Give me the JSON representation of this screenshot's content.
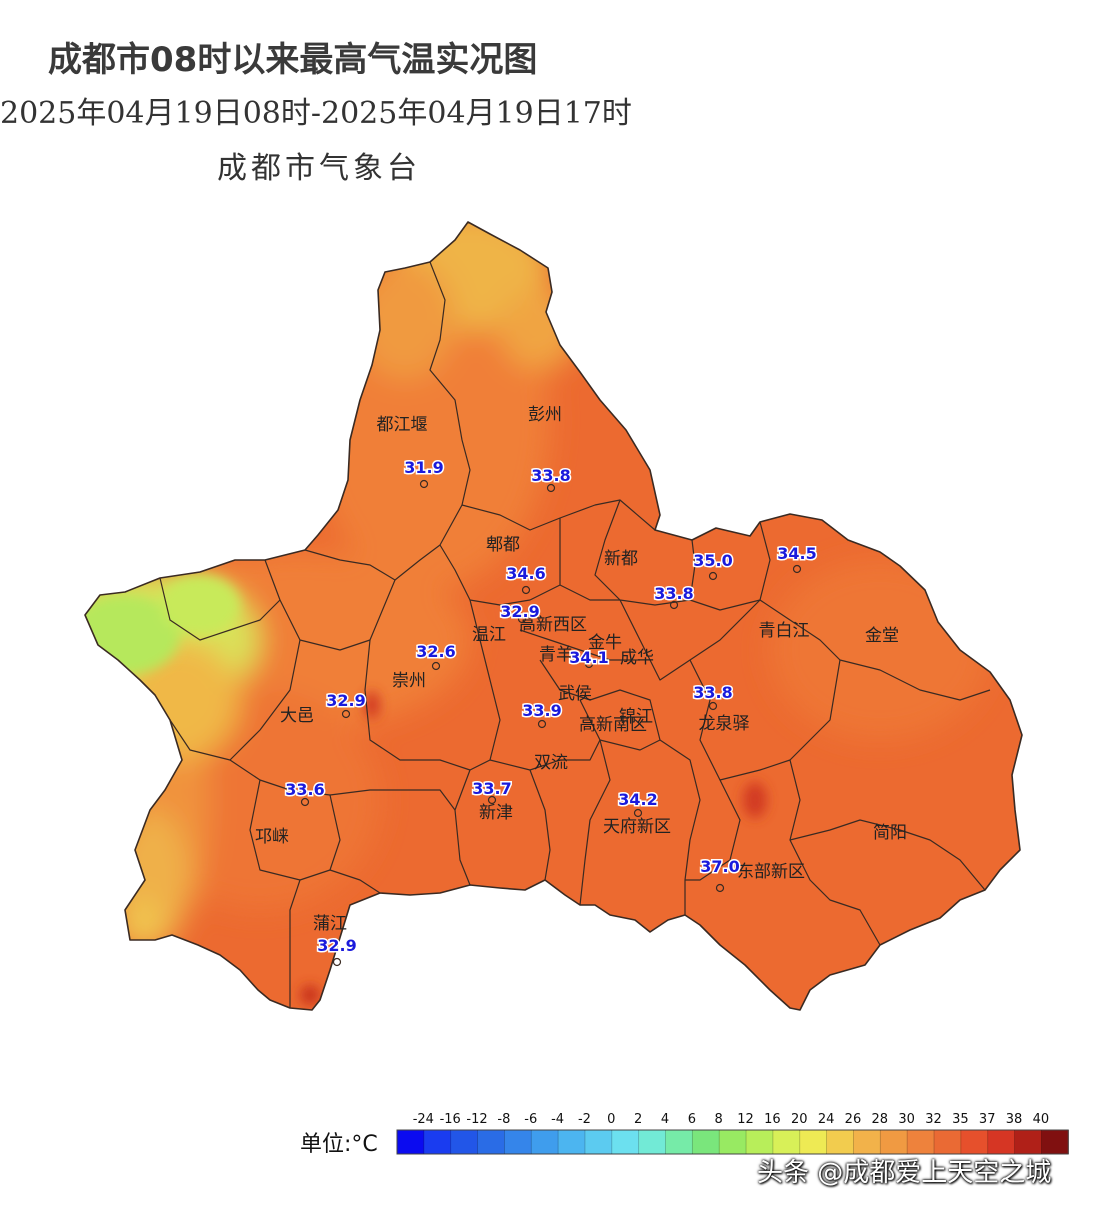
{
  "header": {
    "title": "成都市08时以来最高气温实况图",
    "subtitle": "2025年04月19日08时-2025年04月19日17时",
    "org": "成都市气象台"
  },
  "districts": [
    {
      "name": "都江堰"
    },
    {
      "name": "彭州"
    },
    {
      "name": "郫都"
    },
    {
      "name": "新都"
    },
    {
      "name": "温江"
    },
    {
      "name": "高新西区"
    },
    {
      "name": "青羊"
    },
    {
      "name": "金牛"
    },
    {
      "name": "成华"
    },
    {
      "name": "青白江"
    },
    {
      "name": "金堂"
    },
    {
      "name": "崇州"
    },
    {
      "name": "大邑"
    },
    {
      "name": "武侯"
    },
    {
      "name": "高新南区"
    },
    {
      "name": "锦江"
    },
    {
      "name": "龙泉驿"
    },
    {
      "name": "双流"
    },
    {
      "name": "新津"
    },
    {
      "name": "邛崃"
    },
    {
      "name": "天府新区"
    },
    {
      "name": "东部新区"
    },
    {
      "name": "简阳"
    },
    {
      "name": "蒲江"
    }
  ],
  "stations": [
    {
      "value": "31.9"
    },
    {
      "value": "33.8"
    },
    {
      "value": "34.6"
    },
    {
      "value": "35.0"
    },
    {
      "value": "34.5"
    },
    {
      "value": "33.8"
    },
    {
      "value": "32.9"
    },
    {
      "value": "32.6"
    },
    {
      "value": "34.1"
    },
    {
      "value": "32.9"
    },
    {
      "value": "33.9"
    },
    {
      "value": "33.8"
    },
    {
      "value": "33.6"
    },
    {
      "value": "33.7"
    },
    {
      "value": "34.2"
    },
    {
      "value": "37.0"
    },
    {
      "value": "32.9"
    }
  ],
  "legend": {
    "unit": "单位:°C",
    "ticks": [
      "-24",
      "-16",
      "-12",
      "-8",
      "-6",
      "-4",
      "-2",
      "0",
      "2",
      "4",
      "6",
      "8",
      "12",
      "16",
      "20",
      "24",
      "26",
      "28",
      "30",
      "32",
      "35",
      "37",
      "38",
      "40"
    ],
    "colors": [
      "#0b0bf0",
      "#1a3cf0",
      "#2256e8",
      "#2a6ce6",
      "#3585ea",
      "#3f9ded",
      "#4cb5f0",
      "#5ccbf0",
      "#6ce0ef",
      "#72ead6",
      "#76eba8",
      "#7ae67c",
      "#98ea62",
      "#b8ee5a",
      "#d8f058",
      "#eeea54",
      "#f2cc4e",
      "#f2b24a",
      "#f09a42",
      "#ee823c",
      "#ea6a34",
      "#e6502c",
      "#d63624",
      "#b02018",
      "#801010"
    ]
  },
  "watermark": "头条 @成都爱上天空之城",
  "style": {
    "map_fill_main": "#ec6a30",
    "map_fill_light": "#f0883c",
    "map_fill_yellow": "#efb848",
    "map_fill_green": "#c6e85a",
    "station_text": "#1a1adc",
    "boundary": "#3a2a22"
  }
}
